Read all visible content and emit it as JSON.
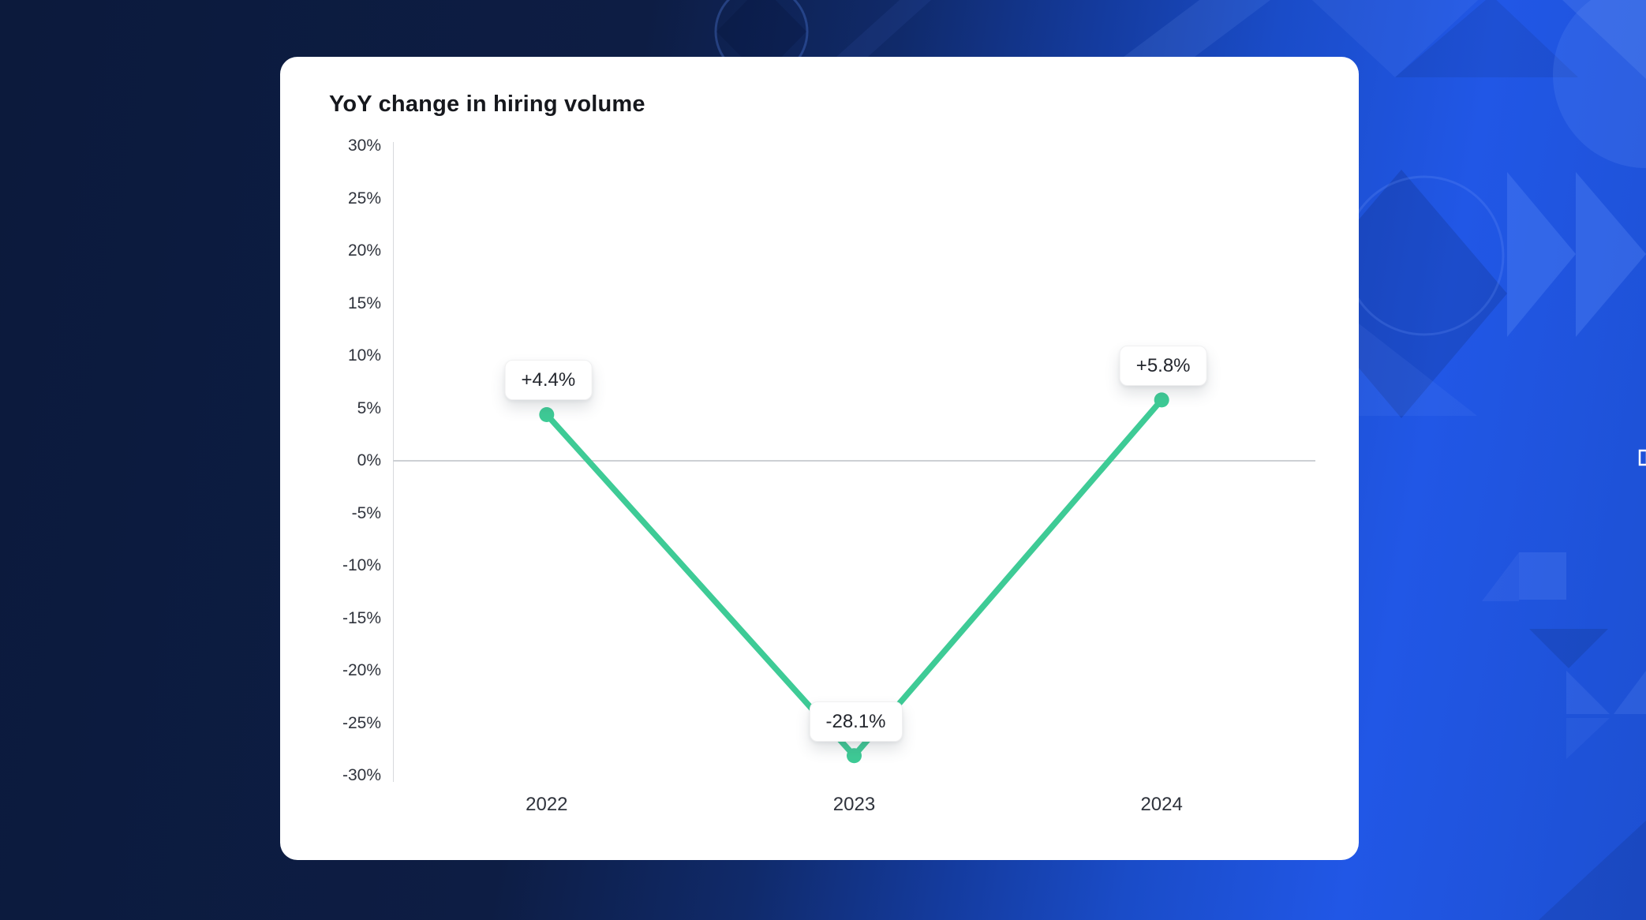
{
  "card": {
    "title": "YoY change in hiring volume"
  },
  "chart_data": {
    "type": "line",
    "title": "YoY change in hiring volume",
    "categories": [
      "2022",
      "2023",
      "2024"
    ],
    "series": [
      {
        "name": "YoY change in hiring volume",
        "values": [
          4.4,
          -28.1,
          5.8
        ]
      }
    ],
    "point_labels": [
      "+4.4%",
      "-28.1%",
      "+5.8%"
    ],
    "ylim": [
      -30,
      30
    ],
    "ytick_step": 5,
    "ytick_labels": [
      "30%",
      "25%",
      "20%",
      "15%",
      "10%",
      "5%",
      "0%",
      "-5%",
      "-10%",
      "-15%",
      "-20%",
      "-25%",
      "-30%"
    ],
    "xlabel": "",
    "ylabel": "",
    "grid": "zero-line-only",
    "legend_position": "none",
    "line_color": "#3ecb96",
    "marker_color": "#3ecb96",
    "accent_background": "#1d50d2",
    "dark_background": "#0c1a3c"
  }
}
